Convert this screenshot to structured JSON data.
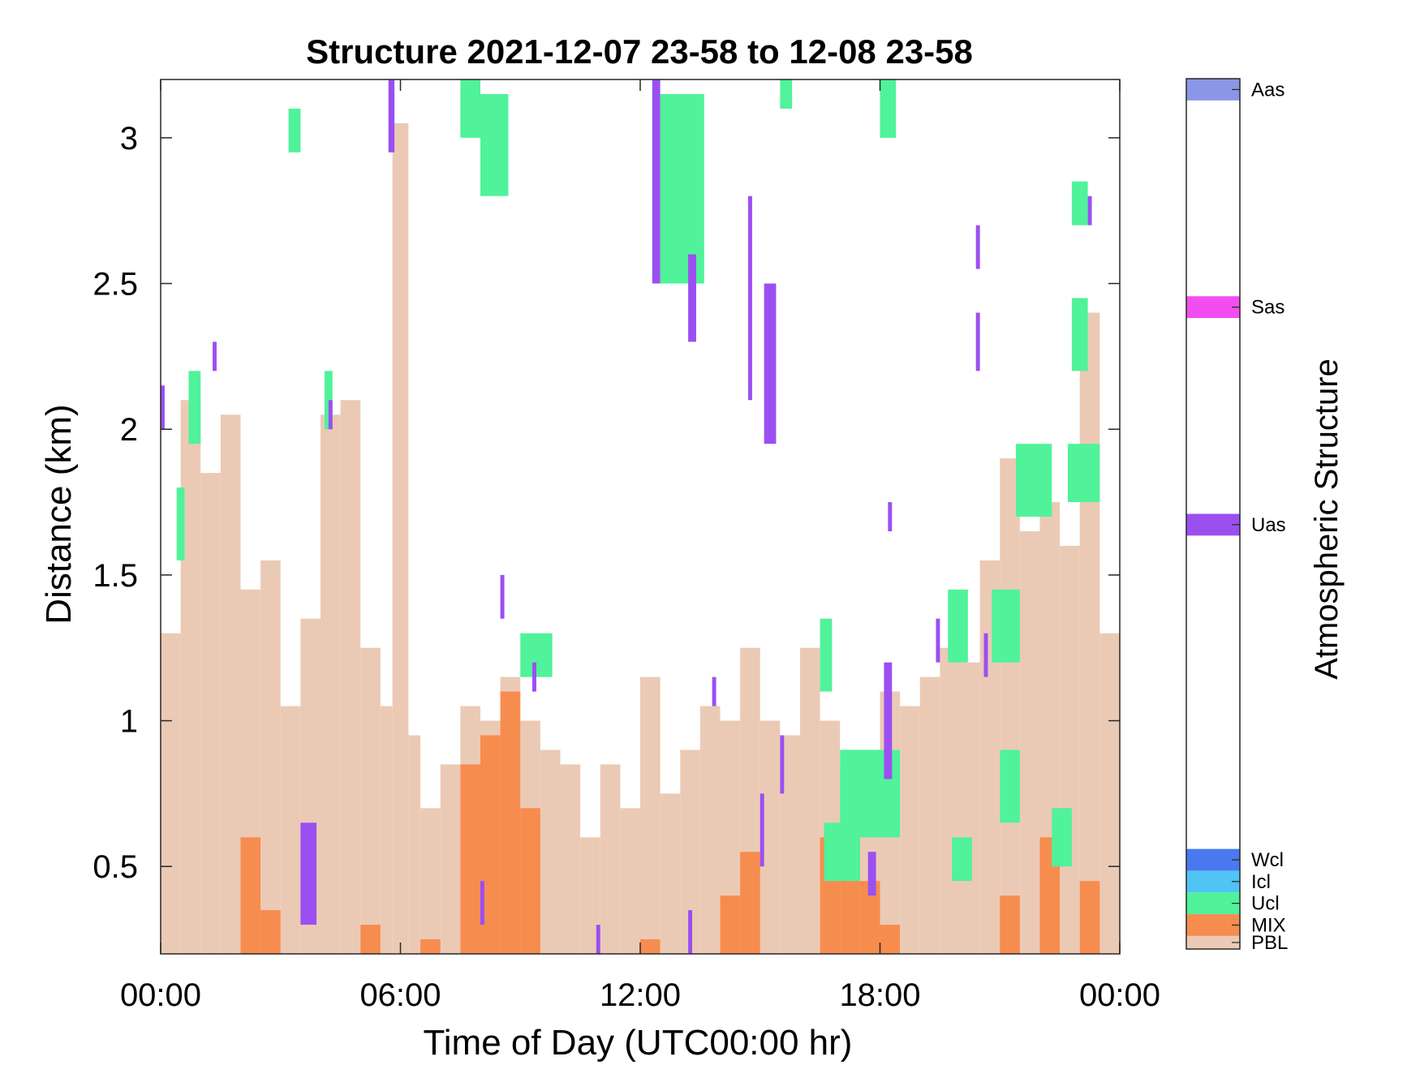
{
  "chart_data": {
    "type": "heatmap",
    "title": "Structure 2021-12-07 23-58 to 12-08 23-58",
    "xlabel": "Time of Day (UTC00:00 hr)",
    "ylabel": "Distance (km)",
    "xlim_hours": [
      0,
      24
    ],
    "ylim_km": [
      0.2,
      3.2
    ],
    "x_tick_hours": [
      0,
      6,
      12,
      18,
      24
    ],
    "x_tick_labels": [
      "00:00",
      "06:00",
      "12:00",
      "18:00",
      "00:00"
    ],
    "y_ticks": [
      0.5,
      1,
      1.5,
      2,
      2.5,
      3
    ],
    "y_tick_labels": [
      "0.5",
      "1",
      "1.5",
      "2",
      "2.5",
      "3"
    ],
    "grid": false,
    "colorbar": {
      "title": "Atmospheric Structure",
      "categories": [
        {
          "label": "Aas",
          "color": "#8b96e6"
        },
        {
          "label": "Sas",
          "color": "#f24df0"
        },
        {
          "label": "Uas",
          "color": "#9b4ff0"
        },
        {
          "label": "Wcl",
          "color": "#4a78ef"
        },
        {
          "label": "Icl",
          "color": "#4fc4f5"
        },
        {
          "label": "Ucl",
          "color": "#50f29a"
        },
        {
          "label": "MIX",
          "color": "#f78c4f"
        },
        {
          "label": "PBL",
          "color": "#ebcab5"
        }
      ]
    },
    "segments": {
      "PBL": [
        [
          0.0,
          0.5,
          0.2,
          1.3
        ],
        [
          0.5,
          1.0,
          0.2,
          2.1
        ],
        [
          1.0,
          1.5,
          0.2,
          1.85
        ],
        [
          1.5,
          2.0,
          0.2,
          2.05
        ],
        [
          2.0,
          2.5,
          0.2,
          1.45
        ],
        [
          2.5,
          3.0,
          0.2,
          1.55
        ],
        [
          3.0,
          3.5,
          0.2,
          1.05
        ],
        [
          3.5,
          4.0,
          0.2,
          1.35
        ],
        [
          4.0,
          4.5,
          0.2,
          2.05
        ],
        [
          4.5,
          5.0,
          0.2,
          2.1
        ],
        [
          5.0,
          5.5,
          0.2,
          1.25
        ],
        [
          5.5,
          5.8,
          0.2,
          1.05
        ],
        [
          5.8,
          6.2,
          0.2,
          3.05
        ],
        [
          6.2,
          6.5,
          0.2,
          0.95
        ],
        [
          6.5,
          7.0,
          0.2,
          0.7
        ],
        [
          7.0,
          7.5,
          0.2,
          0.85
        ],
        [
          7.5,
          8.0,
          0.2,
          1.05
        ],
        [
          8.0,
          8.5,
          0.2,
          1.0
        ],
        [
          8.5,
          9.0,
          0.2,
          1.15
        ],
        [
          9.0,
          9.5,
          0.2,
          1.0
        ],
        [
          9.5,
          10.0,
          0.2,
          0.9
        ],
        [
          10.0,
          10.5,
          0.2,
          0.85
        ],
        [
          10.5,
          11.0,
          0.2,
          0.6
        ],
        [
          11.0,
          11.5,
          0.2,
          0.85
        ],
        [
          11.5,
          12.0,
          0.2,
          0.7
        ],
        [
          12.0,
          12.5,
          0.2,
          1.15
        ],
        [
          12.5,
          13.0,
          0.2,
          0.75
        ],
        [
          13.0,
          13.5,
          0.2,
          0.9
        ],
        [
          13.5,
          14.0,
          0.2,
          1.05
        ],
        [
          14.0,
          14.5,
          0.2,
          1.0
        ],
        [
          14.5,
          15.0,
          0.2,
          1.25
        ],
        [
          15.0,
          15.5,
          0.2,
          1.0
        ],
        [
          15.5,
          16.0,
          0.2,
          0.95
        ],
        [
          16.0,
          16.5,
          0.2,
          1.25
        ],
        [
          16.5,
          17.0,
          0.2,
          1.0
        ],
        [
          17.0,
          17.5,
          0.2,
          0.85
        ],
        [
          17.5,
          18.0,
          0.2,
          0.75
        ],
        [
          18.0,
          18.5,
          0.2,
          1.1
        ],
        [
          18.5,
          19.0,
          0.2,
          1.05
        ],
        [
          19.0,
          19.5,
          0.2,
          1.15
        ],
        [
          19.5,
          20.0,
          0.2,
          1.25
        ],
        [
          20.0,
          20.5,
          0.2,
          1.2
        ],
        [
          20.5,
          21.0,
          0.2,
          1.55
        ],
        [
          21.0,
          21.5,
          0.2,
          1.9
        ],
        [
          21.5,
          22.0,
          0.2,
          1.65
        ],
        [
          22.0,
          22.5,
          0.2,
          1.75
        ],
        [
          22.5,
          23.0,
          0.2,
          1.6
        ],
        [
          23.0,
          23.5,
          0.2,
          2.4
        ],
        [
          23.5,
          24.0,
          0.2,
          1.3
        ]
      ],
      "MIX": [
        [
          2.0,
          2.5,
          0.2,
          0.6
        ],
        [
          2.5,
          3.0,
          0.2,
          0.35
        ],
        [
          5.0,
          5.5,
          0.2,
          0.3
        ],
        [
          6.5,
          7.0,
          0.2,
          0.25
        ],
        [
          7.5,
          8.0,
          0.2,
          0.85
        ],
        [
          8.0,
          8.5,
          0.2,
          0.95
        ],
        [
          8.5,
          9.0,
          0.2,
          1.1
        ],
        [
          9.0,
          9.5,
          0.2,
          0.7
        ],
        [
          12.0,
          12.5,
          0.2,
          0.25
        ],
        [
          14.0,
          14.5,
          0.2,
          0.4
        ],
        [
          14.5,
          15.0,
          0.2,
          0.55
        ],
        [
          16.5,
          17.0,
          0.2,
          0.6
        ],
        [
          17.0,
          17.5,
          0.2,
          0.65
        ],
        [
          17.5,
          18.0,
          0.2,
          0.45
        ],
        [
          18.0,
          18.5,
          0.2,
          0.3
        ],
        [
          21.0,
          21.5,
          0.2,
          0.4
        ],
        [
          22.0,
          22.5,
          0.2,
          0.6
        ],
        [
          23.0,
          23.5,
          0.2,
          0.45
        ]
      ],
      "Ucl": [
        [
          0.7,
          1.0,
          1.95,
          2.2
        ],
        [
          0.4,
          0.6,
          1.55,
          1.8
        ],
        [
          3.2,
          3.5,
          2.95,
          3.1
        ],
        [
          4.1,
          4.3,
          2.0,
          2.2
        ],
        [
          7.5,
          8.0,
          3.0,
          3.2
        ],
        [
          8.0,
          8.7,
          2.8,
          3.15
        ],
        [
          9.0,
          9.8,
          1.15,
          1.3
        ],
        [
          12.5,
          13.6,
          2.5,
          3.15
        ],
        [
          15.5,
          15.8,
          3.1,
          3.2
        ],
        [
          18.0,
          18.4,
          3.0,
          3.2
        ],
        [
          16.5,
          16.8,
          1.1,
          1.35
        ],
        [
          17.0,
          18.5,
          0.6,
          0.9
        ],
        [
          19.7,
          20.2,
          1.2,
          1.45
        ],
        [
          20.8,
          21.5,
          1.2,
          1.45
        ],
        [
          21.0,
          21.5,
          0.65,
          0.9
        ],
        [
          21.4,
          22.3,
          1.7,
          1.95
        ],
        [
          22.7,
          23.5,
          1.75,
          1.95
        ],
        [
          22.3,
          22.8,
          0.5,
          0.7
        ],
        [
          22.8,
          23.2,
          2.2,
          2.45
        ],
        [
          22.8,
          23.2,
          2.7,
          2.85
        ],
        [
          16.6,
          17.5,
          0.45,
          0.65
        ],
        [
          19.8,
          20.3,
          0.45,
          0.6
        ]
      ],
      "Uas": [
        [
          0.0,
          0.1,
          2.0,
          2.15
        ],
        [
          5.7,
          5.85,
          2.95,
          3.2
        ],
        [
          12.3,
          12.5,
          2.5,
          3.2
        ],
        [
          13.2,
          13.4,
          2.3,
          2.6
        ],
        [
          15.1,
          15.4,
          1.95,
          2.5
        ],
        [
          14.7,
          14.8,
          2.1,
          2.8
        ],
        [
          20.4,
          20.5,
          2.2,
          2.4
        ],
        [
          20.4,
          20.5,
          2.55,
          2.7
        ],
        [
          18.2,
          18.3,
          1.65,
          1.75
        ],
        [
          3.5,
          3.9,
          0.3,
          0.65
        ],
        [
          8.5,
          8.6,
          1.35,
          1.5
        ],
        [
          9.3,
          9.4,
          1.1,
          1.2
        ],
        [
          13.8,
          13.9,
          1.05,
          1.15
        ],
        [
          15.0,
          15.1,
          0.5,
          0.75
        ],
        [
          17.7,
          17.9,
          0.4,
          0.55
        ],
        [
          18.1,
          18.3,
          0.8,
          1.2
        ],
        [
          19.4,
          19.5,
          1.2,
          1.35
        ],
        [
          20.6,
          20.7,
          1.15,
          1.3
        ],
        [
          23.2,
          23.3,
          2.7,
          2.8
        ],
        [
          4.2,
          4.3,
          2.0,
          2.1
        ],
        [
          1.3,
          1.4,
          2.2,
          2.3
        ],
        [
          10.9,
          11.0,
          0.2,
          0.3
        ],
        [
          13.2,
          13.3,
          0.2,
          0.35
        ],
        [
          15.5,
          15.6,
          0.75,
          0.95
        ],
        [
          8.0,
          8.1,
          0.3,
          0.45
        ]
      ]
    }
  }
}
